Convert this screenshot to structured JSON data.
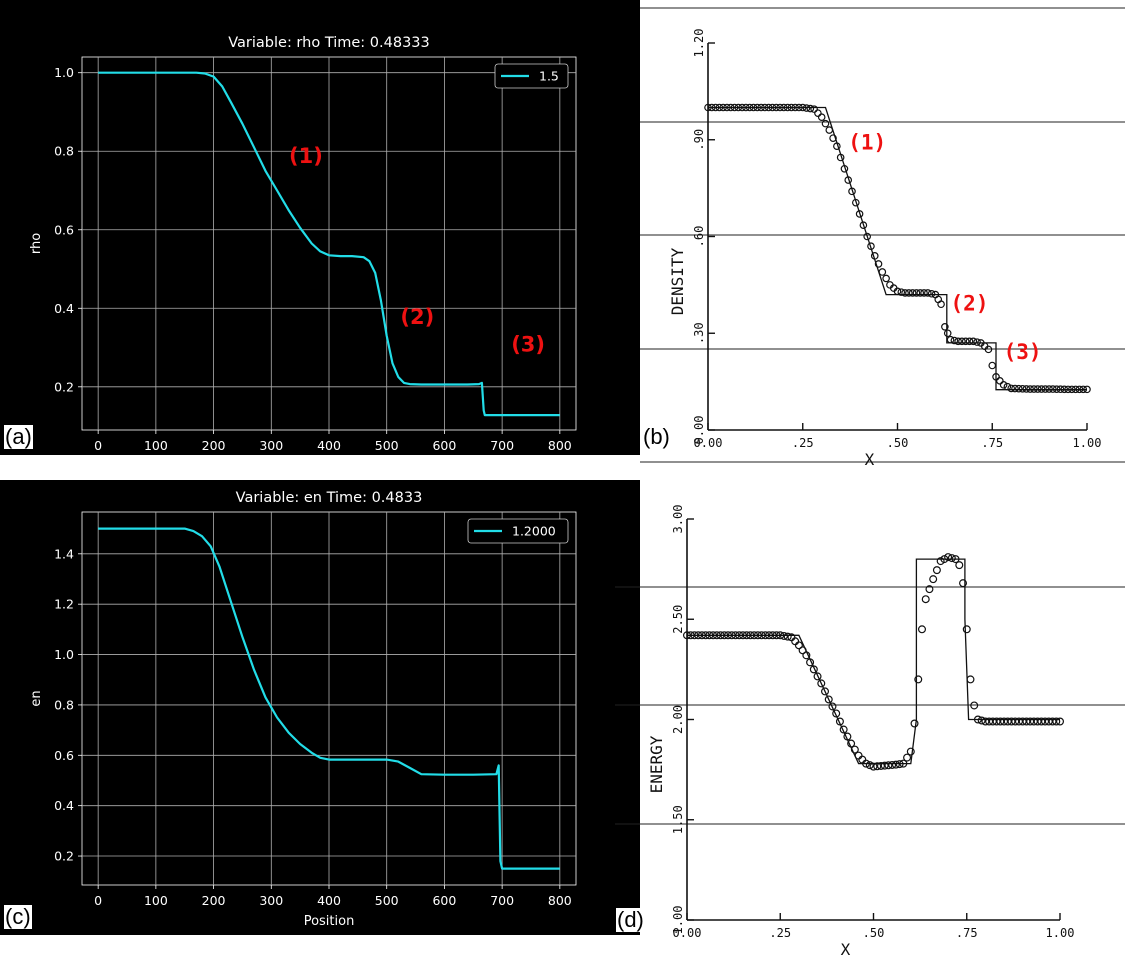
{
  "panels": [
    {
      "label": "(a)",
      "chart_data": {
        "type": "line",
        "title": "Variable: rho Time: 0.48333",
        "xlabel": "",
        "ylabel": "rho",
        "xlim": [
          -28,
          828
        ],
        "ylim": [
          0.09,
          1.04
        ],
        "xticks": [
          0,
          100,
          200,
          300,
          400,
          500,
          600,
          700,
          800
        ],
        "xticklabels": [
          "0",
          "100",
          "200",
          "300",
          "400",
          "500",
          "600",
          "700",
          "800"
        ],
        "yticks": [
          0.2,
          0.4,
          0.6,
          0.8,
          1.0
        ],
        "yticklabels": [
          "0.2",
          "0.4",
          "0.6",
          "0.8",
          "1.0"
        ],
        "grid": true,
        "legend": "top-right",
        "series": [
          {
            "name": "1.5",
            "color": "#22dde8",
            "x": [
              0,
              170,
              185,
              200,
              215,
              230,
              250,
              270,
              290,
              310,
              330,
              350,
              370,
              385,
              400,
              420,
              440,
              460,
              470,
              480,
              490,
              500,
              510,
              520,
              530,
              540,
              560,
              600,
              640,
              660,
              665,
              668,
              670,
              700,
              750,
              800
            ],
            "y": [
              1.0,
              1.0,
              0.998,
              0.99,
              0.965,
              0.925,
              0.87,
              0.81,
              0.75,
              0.7,
              0.65,
              0.605,
              0.565,
              0.545,
              0.535,
              0.533,
              0.533,
              0.53,
              0.52,
              0.49,
              0.42,
              0.33,
              0.26,
              0.225,
              0.21,
              0.207,
              0.206,
              0.206,
              0.206,
              0.207,
              0.21,
              0.14,
              0.128,
              0.128,
              0.128,
              0.128
            ]
          }
        ],
        "annotations": [
          {
            "text": "(1)",
            "x": 360,
            "y": 0.77,
            "color": "#ee1111"
          },
          {
            "text": "(2)",
            "x": 553,
            "y": 0.36,
            "color": "#ee1111"
          },
          {
            "text": "(3)",
            "x": 745,
            "y": 0.29,
            "color": "#ee1111"
          }
        ]
      }
    },
    {
      "label": "(b)",
      "chart_data": {
        "type": "scatter",
        "title": "",
        "xlabel": "X",
        "ylabel": "DENSITY",
        "xlim": [
          0,
          1
        ],
        "ylim": [
          0,
          1.2
        ],
        "xticks": [
          0,
          0.25,
          0.5,
          0.75,
          1.0
        ],
        "xticklabels": [
          "0.00",
          ".25",
          ".50",
          ".75",
          "1.00"
        ],
        "yticks": [
          0,
          0.3,
          0.6,
          0.9,
          1.2
        ],
        "yticklabels": [
          "0.00",
          ".30",
          ".60",
          ".90",
          "1.20"
        ],
        "grid": false,
        "series": [
          {
            "name": "",
            "style": "markers",
            "x": [
              0,
              0.1,
              0.25,
              0.28,
              0.3,
              0.32,
              0.34,
              0.36,
              0.38,
              0.4,
              0.42,
              0.44,
              0.46,
              0.48,
              0.5,
              0.52,
              0.55,
              0.58,
              0.6,
              0.615,
              0.625,
              0.64,
              0.66,
              0.68,
              0.7,
              0.72,
              0.74,
              0.75,
              0.76,
              0.78,
              0.8,
              0.85,
              0.9,
              0.95,
              1.0
            ],
            "y": [
              1.0,
              1.0,
              1.0,
              0.995,
              0.97,
              0.93,
              0.88,
              0.81,
              0.74,
              0.67,
              0.6,
              0.54,
              0.49,
              0.45,
              0.43,
              0.425,
              0.425,
              0.425,
              0.42,
              0.39,
              0.32,
              0.28,
              0.275,
              0.275,
              0.275,
              0.27,
              0.25,
              0.2,
              0.165,
              0.14,
              0.129,
              0.127,
              0.127,
              0.126,
              0.126
            ]
          },
          {
            "name": "",
            "style": "line",
            "x": [
              0,
              0.31,
              0.47,
              0.63,
              0.63,
              0.76,
              0.76,
              1.0
            ],
            "y": [
              1.0,
              1.0,
              0.42,
              0.42,
              0.27,
              0.27,
              0.125,
              0.125
            ]
          }
        ],
        "annotations": [
          {
            "text": "(1)",
            "x": 0.42,
            "y": 0.87,
            "color": "#ee1111"
          },
          {
            "text": "(2)",
            "x": 0.69,
            "y": 0.37,
            "color": "#ee1111"
          },
          {
            "text": "(3)",
            "x": 0.83,
            "y": 0.22,
            "color": "#ee1111"
          }
        ]
      }
    },
    {
      "label": "(c)",
      "chart_data": {
        "type": "line",
        "title": "Variable: en Time: 0.4833",
        "xlabel": "Position",
        "ylabel": "en",
        "xlim": [
          -28,
          828
        ],
        "ylim": [
          0.085,
          1.566
        ],
        "xticks": [
          0,
          100,
          200,
          300,
          400,
          500,
          600,
          700,
          800
        ],
        "xticklabels": [
          "0",
          "100",
          "200",
          "300",
          "400",
          "500",
          "600",
          "700",
          "800"
        ],
        "yticks": [
          0.2,
          0.4,
          0.6,
          0.8,
          1.0,
          1.2,
          1.4
        ],
        "yticklabels": [
          "0.2",
          "0.4",
          "0.6",
          "0.8",
          "1.0",
          "1.2",
          "1.4"
        ],
        "grid": true,
        "legend": "top-right",
        "series": [
          {
            "name": "1.2000",
            "color": "#22dde8",
            "x": [
              0,
              150,
              165,
              180,
              195,
              210,
              230,
              250,
              270,
              290,
              310,
              330,
              350,
              370,
              385,
              400,
              450,
              500,
              520,
              540,
              560,
              600,
              650,
              690,
              694,
              697,
              700,
              750,
              800
            ],
            "y": [
              1.5,
              1.5,
              1.49,
              1.47,
              1.43,
              1.35,
              1.21,
              1.07,
              0.94,
              0.83,
              0.75,
              0.69,
              0.645,
              0.61,
              0.59,
              0.583,
              0.583,
              0.583,
              0.575,
              0.55,
              0.525,
              0.523,
              0.523,
              0.525,
              0.56,
              0.18,
              0.15,
              0.15,
              0.15
            ]
          }
        ]
      }
    },
    {
      "label": "(d)",
      "chart_data": {
        "type": "scatter",
        "title": "",
        "xlabel": "X",
        "ylabel": "ENERGY",
        "xlim": [
          0,
          1
        ],
        "ylim": [
          1.0,
          3.0
        ],
        "xticks": [
          0,
          0.25,
          0.5,
          0.75,
          1.0
        ],
        "xticklabels": [
          "0.00",
          ".25",
          ".50",
          ".75",
          "1.00"
        ],
        "yticks": [
          1.0,
          1.5,
          2.0,
          2.5,
          3.0
        ],
        "yticklabels": [
          "1.00",
          "1.50",
          "2.00",
          "2.50",
          "3.00"
        ],
        "grid": false,
        "series": [
          {
            "name": "",
            "style": "markers",
            "x": [
              0,
              0.1,
              0.25,
              0.28,
              0.3,
              0.32,
              0.34,
              0.36,
              0.38,
              0.4,
              0.42,
              0.44,
              0.46,
              0.48,
              0.5,
              0.53,
              0.56,
              0.58,
              0.6,
              0.61,
              0.62,
              0.63,
              0.64,
              0.66,
              0.68,
              0.7,
              0.72,
              0.73,
              0.74,
              0.75,
              0.76,
              0.77,
              0.78,
              0.8,
              0.85,
              0.9,
              0.95,
              1.0
            ],
            "y": [
              2.42,
              2.42,
              2.42,
              2.41,
              2.37,
              2.32,
              2.25,
              2.18,
              2.1,
              2.03,
              1.95,
              1.88,
              1.82,
              1.78,
              1.765,
              1.77,
              1.775,
              1.78,
              1.84,
              1.98,
              2.2,
              2.45,
              2.6,
              2.7,
              2.79,
              2.81,
              2.8,
              2.77,
              2.68,
              2.45,
              2.2,
              2.07,
              2.0,
              1.99,
              1.99,
              1.99,
              1.99,
              1.99
            ]
          },
          {
            "name": "",
            "style": "line",
            "x": [
              0,
              0.3,
              0.46,
              0.6,
              0.615,
              0.615,
              0.745,
              0.745,
              0.755,
              1.0
            ],
            "y": [
              2.42,
              2.42,
              1.78,
              1.78,
              2.0,
              2.8,
              2.8,
              2.5,
              2.0,
              2.0
            ]
          }
        ]
      }
    }
  ]
}
